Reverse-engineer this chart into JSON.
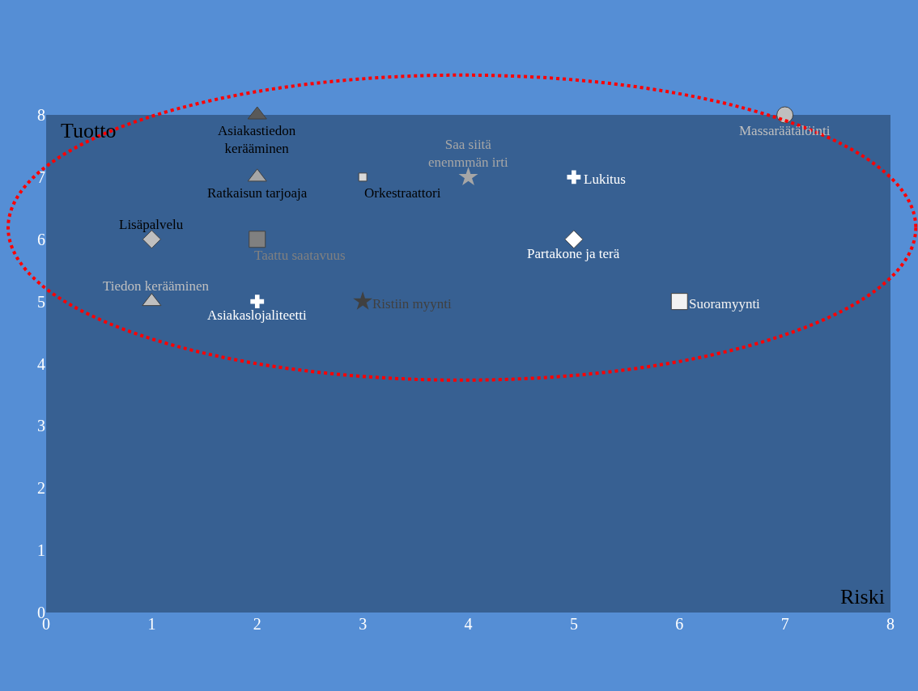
{
  "chart_data": {
    "type": "scatter",
    "xlabel": "Riski",
    "ylabel": "Tuotto",
    "xlim": [
      0,
      8
    ],
    "xticks": [
      0,
      1,
      2,
      3,
      4,
      5,
      6,
      7,
      8
    ],
    "ylim": [
      0,
      8
    ],
    "yticks": [
      0,
      1,
      2,
      3,
      4,
      5,
      6,
      7,
      8
    ],
    "grid": false,
    "legend": false,
    "series": [
      {
        "name": "Asiakastiedon\nkerääminen",
        "x": [
          2
        ],
        "values": [
          8
        ],
        "color": "#595959",
        "marker": "triangle"
      },
      {
        "name": "Massaräätälöinti",
        "x": [
          7
        ],
        "values": [
          8
        ],
        "color": "#bfbfbf",
        "marker": "circle"
      },
      {
        "name": "Ratkaisun tarjoaja",
        "x": [
          2
        ],
        "values": [
          7
        ],
        "color": "#a6a6a6",
        "marker": "triangle"
      },
      {
        "name": "Orkestraattori",
        "x": [
          3
        ],
        "values": [
          7
        ],
        "color": "#d9d9d9",
        "marker": "square"
      },
      {
        "name": "Saa siitä\nenenmmän irti",
        "x": [
          4
        ],
        "values": [
          7
        ],
        "color": "#a6a6a6",
        "marker": "star"
      },
      {
        "name": "Lukitus",
        "x": [
          5
        ],
        "values": [
          7
        ],
        "color": "#ffffff",
        "marker": "cross"
      },
      {
        "name": "Lisäpalvelu",
        "x": [
          1
        ],
        "values": [
          6
        ],
        "color": "#bfbfbf",
        "marker": "diamond"
      },
      {
        "name": "Taattu saatavuus",
        "x": [
          2
        ],
        "values": [
          6
        ],
        "color": "#808080",
        "marker": "square"
      },
      {
        "name": "Partakone ja terä",
        "x": [
          5
        ],
        "values": [
          6
        ],
        "color": "#ffffff",
        "marker": "diamond"
      },
      {
        "name": "Tiedon kerääminen",
        "x": [
          1
        ],
        "values": [
          5
        ],
        "color": "#bfbfbf",
        "marker": "triangle"
      },
      {
        "name": "Asiakaslojaliteetti",
        "x": [
          2
        ],
        "values": [
          5
        ],
        "color": "#ffffff",
        "marker": "cross"
      },
      {
        "name": "Ristiin myynti",
        "x": [
          3
        ],
        "values": [
          5
        ],
        "color": "#404040",
        "marker": "star"
      },
      {
        "name": "Suoramyynti",
        "x": [
          6
        ],
        "values": [
          5
        ],
        "color": "#f2f2f2",
        "marker": "square"
      }
    ]
  }
}
